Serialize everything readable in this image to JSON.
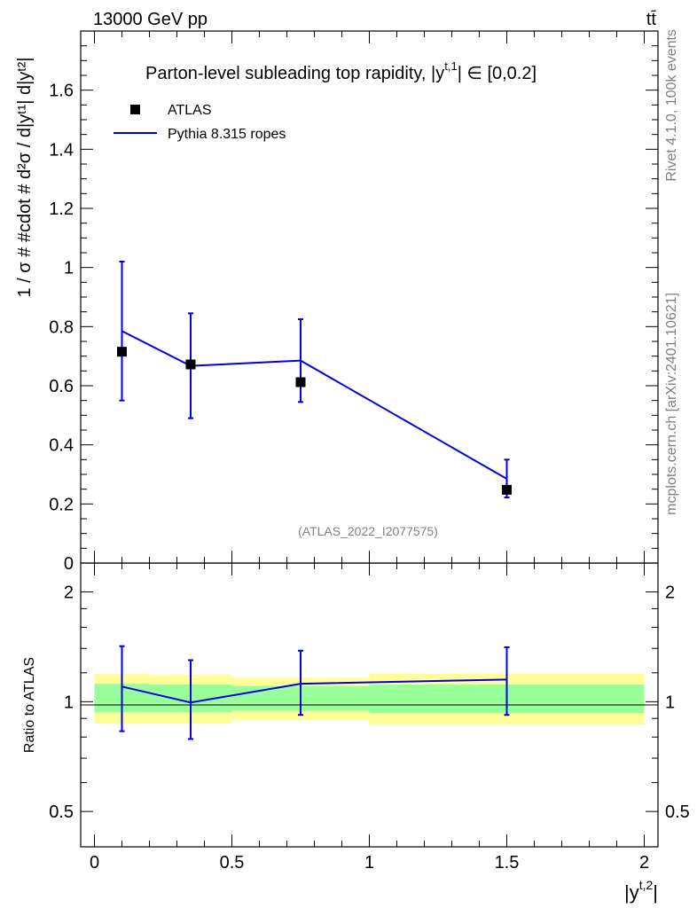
{
  "header": {
    "energy_label": "13000 GeV pp",
    "process_label": "tt̄"
  },
  "side_labels": {
    "rivet": "Rivet 4.1.0,  100k events",
    "mcplots": "mcplots.cern.ch [arXiv:2401.10621]"
  },
  "chart_data": [
    {
      "type": "scatter",
      "panel": "main",
      "title": "Parton-level subleading top rapidity, |y",
      "title_sup": "t,1",
      "title_end": "| ∈ [0,0.2]",
      "ylabel": "1 / σ # #cdot # d²σ / d|yᵗ¹| d|yᵗ²|",
      "xlim": [
        -0.05,
        2.05
      ],
      "ylim": [
        0,
        1.8
      ],
      "yticks": [
        0,
        0.2,
        0.4,
        0.6,
        0.8,
        1,
        1.2,
        1.4,
        1.6
      ],
      "ytick_labels": [
        "0",
        "0.2",
        "0.4",
        "0.6",
        "0.8",
        "1",
        "1.2",
        "1.4",
        "1.6"
      ],
      "watermark": "(ATLAS_2022_I2077575)",
      "legend": {
        "position": "top-left",
        "entries": [
          "ATLAS",
          "Pythia 8.315 ropes"
        ]
      },
      "series": [
        {
          "name": "ATLAS",
          "marker": "square",
          "color": "#000000",
          "x": [
            0.1,
            0.35,
            0.75,
            1.5
          ],
          "y": [
            0.715,
            0.672,
            0.612,
            0.248
          ]
        },
        {
          "name": "Pythia 8.315 ropes",
          "style": "line",
          "color": "#0000dd",
          "x": [
            0.1,
            0.35,
            0.75,
            1.5
          ],
          "y": [
            0.785,
            0.667,
            0.685,
            0.285
          ],
          "err_low": [
            0.55,
            0.49,
            0.545,
            0.222
          ],
          "err_high": [
            1.02,
            0.845,
            0.825,
            0.35
          ]
        }
      ]
    },
    {
      "type": "line",
      "panel": "ratio",
      "ylabel": "Ratio to ATLAS",
      "xlabel": "|y",
      "xlabel_sup": "t,2",
      "xlabel_end": "|",
      "xlim": [
        -0.05,
        2.05
      ],
      "ylim": [
        0.4,
        2.4
      ],
      "scale": "log",
      "yticks": [
        0.5,
        1,
        2
      ],
      "ytick_labels": [
        "0.5",
        "1",
        "2"
      ],
      "xticks": [
        0,
        0.5,
        1,
        1.5,
        2
      ],
      "xtick_labels": [
        "0",
        "0.5",
        "1",
        "1.5",
        "2"
      ],
      "bands": [
        {
          "x0": 0.0,
          "x1": 0.2,
          "inner": [
            0.935,
            1.12
          ],
          "outer": [
            0.87,
            1.19
          ]
        },
        {
          "x0": 0.2,
          "x1": 0.5,
          "inner": [
            0.935,
            1.115
          ],
          "outer": [
            0.87,
            1.185
          ]
        },
        {
          "x0": 0.5,
          "x1": 1.0,
          "inner": [
            0.945,
            1.105
          ],
          "outer": [
            0.89,
            1.165
          ]
        },
        {
          "x0": 1.0,
          "x1": 2.0,
          "inner": [
            0.93,
            1.115
          ],
          "outer": [
            0.865,
            1.195
          ]
        }
      ],
      "series": [
        {
          "name": "Pythia 8.315 ropes / ATLAS",
          "color": "#0000dd",
          "x": [
            0.1,
            0.35,
            0.75,
            1.5
          ],
          "y": [
            1.1,
            0.995,
            1.12,
            1.15
          ],
          "err_low": [
            0.83,
            0.79,
            0.92,
            0.92
          ],
          "err_high": [
            1.42,
            1.3,
            1.38,
            1.41
          ]
        }
      ]
    }
  ]
}
